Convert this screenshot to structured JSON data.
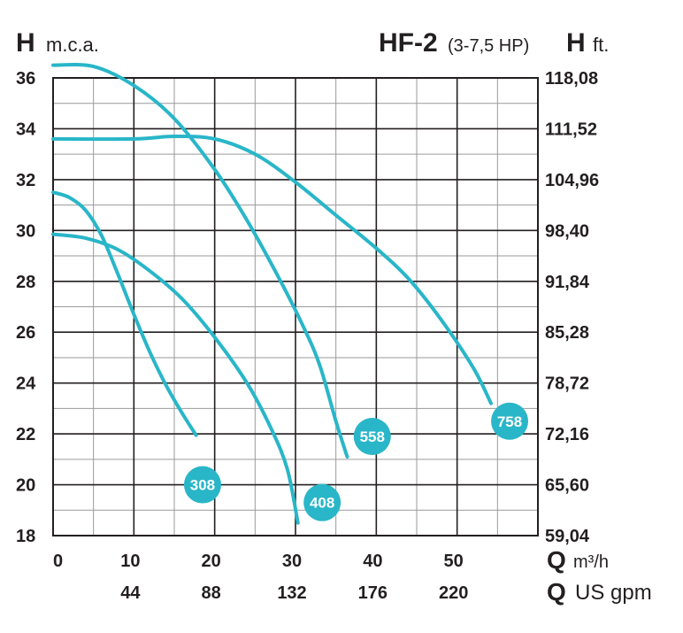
{
  "header": {
    "left_unit_symbol": "H",
    "left_unit": "m.c.a.",
    "model": "HF-2",
    "power": "(3-7,5 HP)",
    "right_unit_symbol": "H",
    "right_unit": "ft."
  },
  "x_axis": {
    "primary_symbol": "Q",
    "primary_unit": "m³/h",
    "secondary_symbol": "Q",
    "secondary_unit": "US gpm"
  },
  "colors": {
    "curve": "#29b6c8",
    "grid_major": "#231f20",
    "grid_minor": "#9a9a9a",
    "badge_text": "#ffffff"
  },
  "chart_data": {
    "type": "line",
    "title": "HF-2 (3-7,5 HP)",
    "xlabel": "Q m³/h",
    "x2label": "Q US gpm",
    "ylabel": "H m.c.a.",
    "y2label": "H ft.",
    "xlim": [
      0,
      60
    ],
    "ylim": [
      18,
      36
    ],
    "x_ticks": [
      "0",
      "10",
      "20",
      "30",
      "40",
      "50"
    ],
    "x_tick_values": [
      0,
      10,
      20,
      30,
      40,
      50
    ],
    "x2_ticks": [
      "44",
      "88",
      "132",
      "176",
      "220"
    ],
    "x2_tick_values": [
      10,
      20,
      30,
      40,
      50
    ],
    "y_ticks": [
      "18",
      "20",
      "22",
      "24",
      "26",
      "28",
      "30",
      "32",
      "34",
      "36"
    ],
    "y_tick_values": [
      18,
      20,
      22,
      24,
      26,
      28,
      30,
      32,
      34,
      36
    ],
    "y2_ticks": [
      "59,04",
      "65,60",
      "72,16",
      "78,72",
      "85,28",
      "91,84",
      "98,40",
      "104,96",
      "111,52",
      "118,08"
    ],
    "grid": true,
    "series": [
      {
        "name": "308",
        "label_pos": [
          18.5,
          20.0
        ],
        "points": [
          [
            0,
            31.5
          ],
          [
            2,
            31.3
          ],
          [
            4,
            30.8
          ],
          [
            6,
            29.8
          ],
          [
            8,
            28.3
          ],
          [
            10,
            26.7
          ],
          [
            12,
            25.2
          ],
          [
            14,
            23.9
          ],
          [
            16,
            22.8
          ],
          [
            17.7,
            21.95
          ]
        ]
      },
      {
        "name": "408",
        "label_pos": [
          33.3,
          19.3
        ],
        "points": [
          [
            0,
            29.85
          ],
          [
            4,
            29.7
          ],
          [
            8,
            29.25
          ],
          [
            12,
            28.4
          ],
          [
            16,
            27.3
          ],
          [
            20,
            25.8
          ],
          [
            24,
            24.0
          ],
          [
            27,
            22.2
          ],
          [
            29,
            20.6
          ],
          [
            30.3,
            18.5
          ]
        ]
      },
      {
        "name": "558",
        "label_pos": [
          39.5,
          21.9
        ],
        "points": [
          [
            0,
            36.5
          ],
          [
            5,
            36.45
          ],
          [
            10,
            35.7
          ],
          [
            15,
            34.4
          ],
          [
            20,
            32.4
          ],
          [
            24,
            30.4
          ],
          [
            28,
            28.1
          ],
          [
            31,
            26.2
          ],
          [
            33,
            24.7
          ],
          [
            35,
            22.5
          ],
          [
            36.4,
            21.1
          ]
        ]
      },
      {
        "name": "758",
        "label_pos": [
          56.5,
          22.5
        ],
        "points": [
          [
            0,
            33.6
          ],
          [
            10,
            33.6
          ],
          [
            15,
            33.7
          ],
          [
            20,
            33.6
          ],
          [
            25,
            33.0
          ],
          [
            30,
            31.9
          ],
          [
            35,
            30.6
          ],
          [
            40,
            29.3
          ],
          [
            44,
            28.1
          ],
          [
            48,
            26.5
          ],
          [
            52,
            24.6
          ],
          [
            54.2,
            23.2
          ]
        ]
      }
    ]
  }
}
